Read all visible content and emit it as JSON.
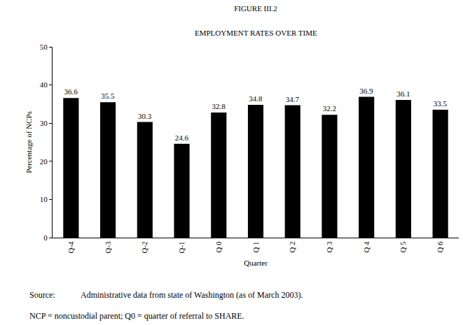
{
  "chart_data": {
    "type": "bar",
    "title": "FIGURE III.2",
    "subtitle": "EMPLOYMENT RATES OVER TIME",
    "x_label": "Quarter",
    "y_label": "Percentage of NCPs",
    "categories": [
      "Q-4",
      "Q-3",
      "Q-2",
      "Q-1",
      "Q 0",
      "Q 1",
      "Q 2",
      "Q 3",
      "Q 4",
      "Q 5",
      "Q 6"
    ],
    "values": [
      36.6,
      35.5,
      30.3,
      24.6,
      32.8,
      34.8,
      34.7,
      32.2,
      36.9,
      36.1,
      33.5
    ],
    "color": "#000000",
    "ylim": [
      0,
      50
    ],
    "yticks": [
      0,
      10,
      20,
      30,
      40,
      50
    ],
    "grid": false,
    "data_labels": true,
    "source_label": "Source:",
    "source": "Administrative data from state of Washington (as of March 2003).",
    "note": "NCP = noncustodial parent; Q0 = quarter of referral to SHARE."
  }
}
